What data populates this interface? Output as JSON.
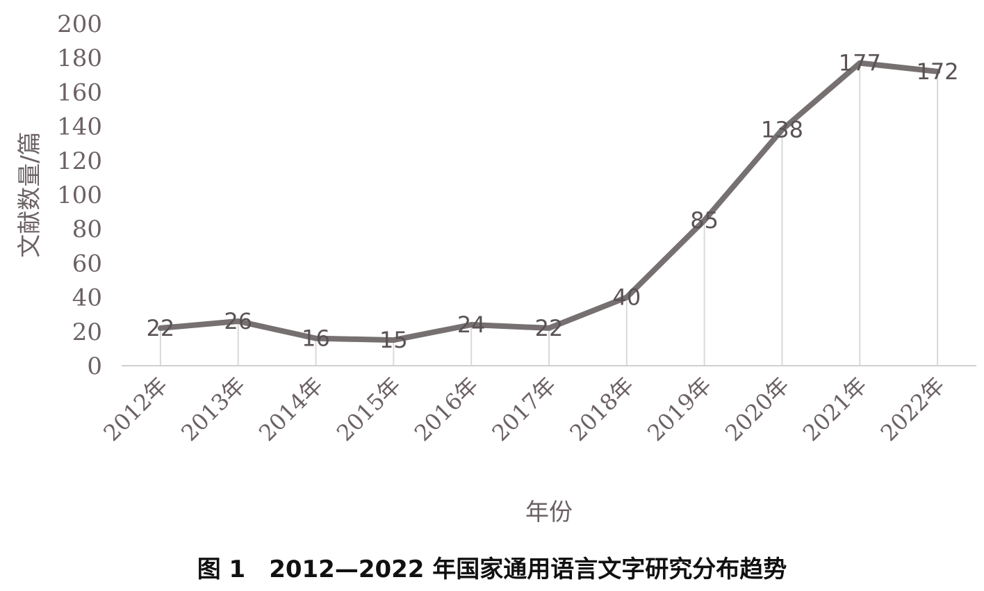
{
  "chart_data": {
    "type": "line",
    "title": "",
    "caption": "图 1　2012—2022 年国家通用语言文字研究分布趋势",
    "xlabel": "年份",
    "ylabel": "文献数量/篇",
    "ylim": [
      0,
      200
    ],
    "yticks": [
      "0",
      "20",
      "40",
      "60",
      "80",
      "100",
      "120",
      "140",
      "160",
      "180",
      "200"
    ],
    "categories": [
      "2012年",
      "2013年",
      "2014年",
      "2015年",
      "2016年",
      "2017年",
      "2018年",
      "2019年",
      "2020年",
      "2021年",
      "2022年"
    ],
    "series": [
      {
        "values": [
          22,
          26,
          16,
          15,
          24,
          22,
          40,
          85,
          138,
          177,
          172
        ]
      }
    ],
    "data_labels": [
      "22",
      "26",
      "16",
      "15",
      "24",
      "22",
      "40",
      "85",
      "138",
      "177",
      "172"
    ],
    "grid": false,
    "drop_lines": true,
    "colors": {
      "line": "#767071",
      "drop_line": "#d9d9d9",
      "axis": "#d0d0d0",
      "text": "#6b6163"
    }
  }
}
